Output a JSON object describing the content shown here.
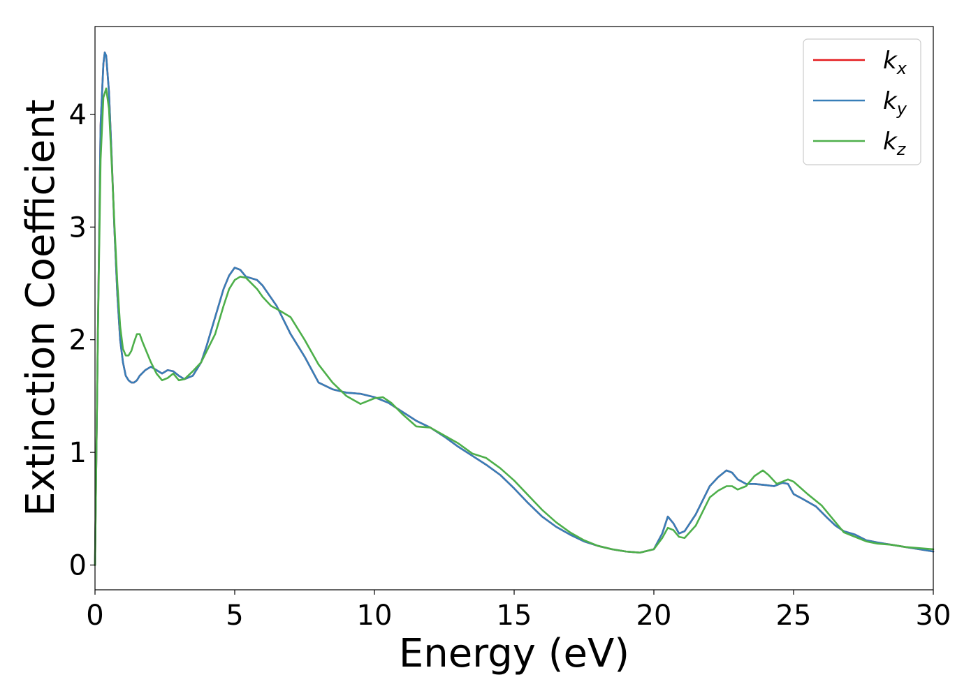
{
  "chart_data": {
    "type": "line",
    "title": "",
    "xlabel": "Energy (eV)",
    "ylabel": "Extinction Coefficient",
    "xlim": [
      0,
      30
    ],
    "ylim": [
      -0.22,
      4.78
    ],
    "xticks": [
      0,
      5,
      10,
      15,
      20,
      25,
      30
    ],
    "yticks": [
      0,
      1,
      2,
      3,
      4
    ],
    "grid": false,
    "legend_position": "top-right",
    "series": [
      {
        "name": "k_x",
        "legend_main": "k",
        "legend_sub": "x",
        "color": "#e41a1c",
        "x": [
          0,
          0.1,
          0.2,
          0.3,
          0.35,
          0.4,
          0.5,
          0.6,
          0.7,
          0.8,
          0.9,
          1.0,
          1.1,
          1.2,
          1.3,
          1.4,
          1.5,
          1.6,
          1.8,
          2.0,
          2.2,
          2.4,
          2.6,
          2.8,
          3.0,
          3.2,
          3.5,
          3.8,
          4.0,
          4.3,
          4.6,
          4.8,
          5.0,
          5.2,
          5.4,
          5.8,
          6.0,
          6.5,
          7.0,
          7.5,
          8.0,
          8.5,
          9.0,
          9.5,
          10.0,
          10.5,
          11.0,
          11.5,
          12.0,
          12.5,
          13.0,
          13.5,
          14.0,
          14.5,
          15.0,
          15.5,
          16.0,
          16.5,
          17.0,
          17.5,
          18.0,
          18.5,
          19.0,
          19.5,
          20.0,
          20.3,
          20.5,
          20.7,
          20.9,
          21.1,
          21.5,
          22.0,
          22.3,
          22.6,
          22.8,
          23.0,
          23.3,
          23.6,
          24.0,
          24.3,
          24.6,
          24.8,
          25.0,
          25.3,
          25.8,
          26.2,
          26.5,
          26.8,
          27.2,
          27.6,
          28.0,
          28.5,
          29.0,
          29.5,
          30.0
        ],
        "y": [
          0.0,
          2.0,
          3.9,
          4.45,
          4.55,
          4.52,
          4.2,
          3.6,
          2.95,
          2.4,
          2.0,
          1.8,
          1.68,
          1.64,
          1.62,
          1.62,
          1.64,
          1.68,
          1.73,
          1.76,
          1.73,
          1.7,
          1.73,
          1.72,
          1.68,
          1.65,
          1.68,
          1.8,
          1.95,
          2.2,
          2.45,
          2.57,
          2.64,
          2.62,
          2.56,
          2.53,
          2.48,
          2.3,
          2.05,
          1.85,
          1.62,
          1.56,
          1.53,
          1.52,
          1.49,
          1.44,
          1.36,
          1.28,
          1.22,
          1.14,
          1.05,
          0.97,
          0.89,
          0.8,
          0.68,
          0.55,
          0.43,
          0.34,
          0.27,
          0.21,
          0.17,
          0.14,
          0.12,
          0.11,
          0.14,
          0.28,
          0.43,
          0.37,
          0.28,
          0.3,
          0.45,
          0.7,
          0.78,
          0.84,
          0.82,
          0.76,
          0.72,
          0.72,
          0.71,
          0.7,
          0.73,
          0.72,
          0.63,
          0.59,
          0.52,
          0.42,
          0.35,
          0.3,
          0.27,
          0.22,
          0.2,
          0.18,
          0.16,
          0.14,
          0.12
        ]
      },
      {
        "name": "k_y",
        "legend_main": "k",
        "legend_sub": "y",
        "color": "#377eb8",
        "x": [
          0,
          0.1,
          0.2,
          0.3,
          0.35,
          0.4,
          0.5,
          0.6,
          0.7,
          0.8,
          0.9,
          1.0,
          1.1,
          1.2,
          1.3,
          1.4,
          1.5,
          1.6,
          1.8,
          2.0,
          2.2,
          2.4,
          2.6,
          2.8,
          3.0,
          3.2,
          3.5,
          3.8,
          4.0,
          4.3,
          4.6,
          4.8,
          5.0,
          5.2,
          5.4,
          5.8,
          6.0,
          6.5,
          7.0,
          7.5,
          8.0,
          8.5,
          9.0,
          9.5,
          10.0,
          10.5,
          11.0,
          11.5,
          12.0,
          12.5,
          13.0,
          13.5,
          14.0,
          14.5,
          15.0,
          15.5,
          16.0,
          16.5,
          17.0,
          17.5,
          18.0,
          18.5,
          19.0,
          19.5,
          20.0,
          20.3,
          20.5,
          20.7,
          20.9,
          21.1,
          21.5,
          22.0,
          22.3,
          22.6,
          22.8,
          23.0,
          23.3,
          23.6,
          24.0,
          24.3,
          24.6,
          24.8,
          25.0,
          25.3,
          25.8,
          26.2,
          26.5,
          26.8,
          27.2,
          27.6,
          28.0,
          28.5,
          29.0,
          29.5,
          30.0
        ],
        "y": [
          0.0,
          2.0,
          3.9,
          4.45,
          4.55,
          4.52,
          4.2,
          3.6,
          2.95,
          2.4,
          2.0,
          1.8,
          1.68,
          1.64,
          1.62,
          1.62,
          1.64,
          1.68,
          1.73,
          1.76,
          1.73,
          1.7,
          1.73,
          1.72,
          1.68,
          1.65,
          1.68,
          1.8,
          1.95,
          2.2,
          2.45,
          2.57,
          2.64,
          2.62,
          2.56,
          2.53,
          2.48,
          2.3,
          2.05,
          1.85,
          1.62,
          1.56,
          1.53,
          1.52,
          1.49,
          1.44,
          1.36,
          1.28,
          1.22,
          1.14,
          1.05,
          0.97,
          0.89,
          0.8,
          0.68,
          0.55,
          0.43,
          0.34,
          0.27,
          0.21,
          0.17,
          0.14,
          0.12,
          0.11,
          0.14,
          0.28,
          0.43,
          0.37,
          0.28,
          0.3,
          0.45,
          0.7,
          0.78,
          0.84,
          0.82,
          0.76,
          0.72,
          0.72,
          0.71,
          0.7,
          0.73,
          0.72,
          0.63,
          0.59,
          0.52,
          0.42,
          0.35,
          0.3,
          0.27,
          0.22,
          0.2,
          0.18,
          0.16,
          0.14,
          0.12
        ]
      },
      {
        "name": "k_z",
        "legend_main": "k",
        "legend_sub": "z",
        "color": "#4daf4a",
        "x": [
          0,
          0.1,
          0.2,
          0.3,
          0.4,
          0.5,
          0.6,
          0.7,
          0.8,
          0.9,
          1.0,
          1.1,
          1.2,
          1.3,
          1.4,
          1.5,
          1.6,
          1.7,
          1.8,
          2.0,
          2.2,
          2.4,
          2.6,
          2.8,
          3.0,
          3.2,
          3.5,
          3.8,
          4.0,
          4.3,
          4.6,
          4.8,
          5.0,
          5.2,
          5.4,
          5.8,
          6.0,
          6.3,
          6.6,
          7.0,
          7.5,
          8.0,
          8.5,
          9.0,
          9.5,
          10.0,
          10.3,
          10.6,
          11.0,
          11.5,
          12.0,
          12.5,
          13.0,
          13.5,
          14.0,
          14.5,
          15.0,
          15.5,
          16.0,
          16.5,
          17.0,
          17.5,
          18.0,
          18.5,
          19.0,
          19.5,
          20.0,
          20.3,
          20.5,
          20.7,
          20.9,
          21.1,
          21.5,
          22.0,
          22.3,
          22.6,
          22.8,
          23.0,
          23.3,
          23.6,
          23.9,
          24.1,
          24.4,
          24.8,
          25.0,
          25.5,
          26.0,
          26.5,
          26.8,
          27.2,
          27.6,
          28.0,
          28.5,
          29.0,
          29.5,
          30.0
        ],
        "y": [
          0.0,
          2.0,
          3.6,
          4.15,
          4.23,
          4.05,
          3.55,
          3.0,
          2.5,
          2.12,
          1.92,
          1.86,
          1.86,
          1.9,
          1.98,
          2.05,
          2.05,
          1.98,
          1.92,
          1.8,
          1.7,
          1.64,
          1.66,
          1.7,
          1.64,
          1.65,
          1.72,
          1.8,
          1.9,
          2.05,
          2.3,
          2.45,
          2.53,
          2.56,
          2.55,
          2.45,
          2.38,
          2.3,
          2.26,
          2.2,
          2.0,
          1.78,
          1.62,
          1.5,
          1.43,
          1.48,
          1.49,
          1.44,
          1.34,
          1.23,
          1.22,
          1.15,
          1.08,
          0.99,
          0.95,
          0.86,
          0.75,
          0.62,
          0.49,
          0.38,
          0.29,
          0.22,
          0.17,
          0.14,
          0.12,
          0.11,
          0.14,
          0.24,
          0.33,
          0.31,
          0.25,
          0.24,
          0.35,
          0.6,
          0.66,
          0.7,
          0.7,
          0.67,
          0.7,
          0.79,
          0.84,
          0.8,
          0.72,
          0.76,
          0.74,
          0.63,
          0.53,
          0.38,
          0.29,
          0.25,
          0.21,
          0.19,
          0.18,
          0.16,
          0.15,
          0.14
        ]
      }
    ]
  }
}
